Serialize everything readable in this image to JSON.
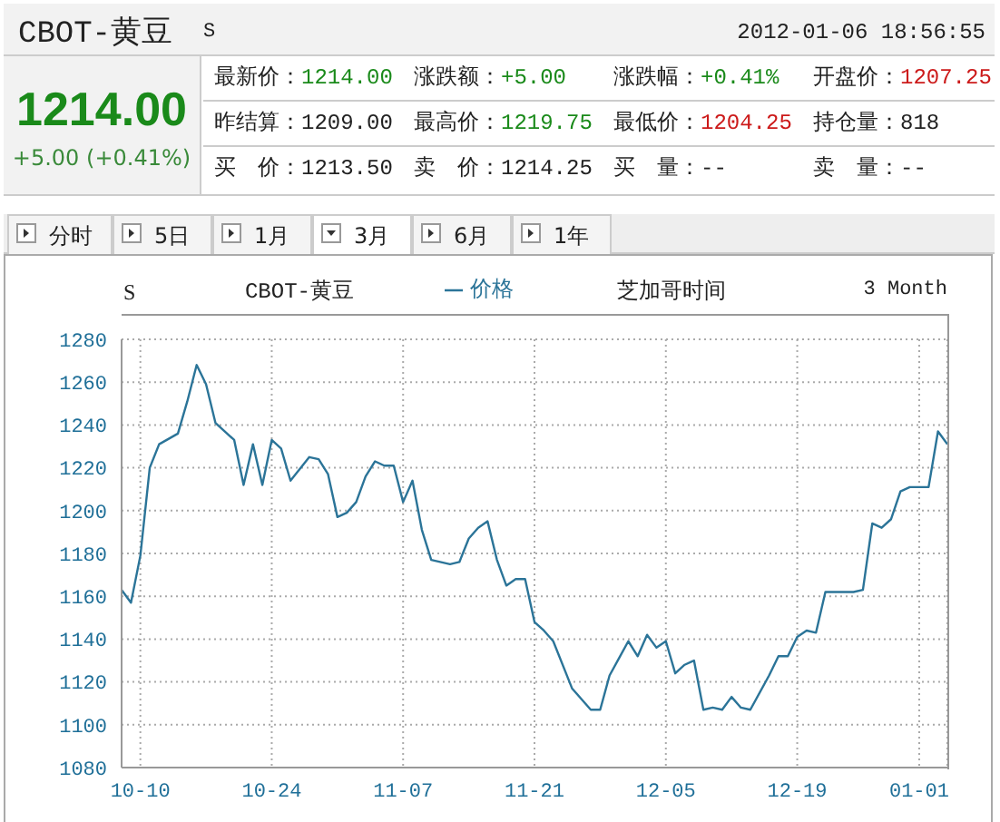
{
  "chart_data": {
    "type": "line",
    "title": "CBOT-黄豆",
    "x": [
      "2011-10-08",
      "2011-10-09",
      "2011-10-10",
      "2011-10-11",
      "2011-10-12",
      "2011-10-14",
      "2011-10-15",
      "2011-10-16",
      "2011-10-17",
      "2011-10-18",
      "2011-10-20",
      "2011-10-21",
      "2011-10-22",
      "2011-10-23",
      "2011-10-24",
      "2011-10-25",
      "2011-10-26",
      "2011-10-28",
      "2011-10-29",
      "2011-10-30",
      "2011-10-31",
      "2011-11-01",
      "2011-11-02",
      "2011-11-03",
      "2011-11-04",
      "2011-11-05",
      "2011-11-06",
      "2011-11-07",
      "2011-11-08",
      "2011-11-09",
      "2011-11-10",
      "2011-11-12",
      "2011-11-13",
      "2011-11-14",
      "2011-11-15",
      "2011-11-16",
      "2011-11-17",
      "2011-11-18",
      "2011-11-19",
      "2011-11-20",
      "2011-11-21",
      "2011-11-22",
      "2011-11-23",
      "2011-11-25",
      "2011-11-26",
      "2011-11-27",
      "2011-11-28",
      "2011-11-29",
      "2011-11-30",
      "2011-12-01",
      "2011-12-02",
      "2011-12-03",
      "2011-12-04",
      "2011-12-05",
      "2011-12-06",
      "2011-12-07",
      "2011-12-08",
      "2011-12-09",
      "2011-12-10",
      "2011-12-11",
      "2011-12-12",
      "2011-12-13",
      "2011-12-14",
      "2011-12-16",
      "2011-12-17",
      "2011-12-18",
      "2011-12-19",
      "2011-12-20",
      "2011-12-21",
      "2011-12-22",
      "2011-12-23",
      "2011-12-24",
      "2011-12-25",
      "2011-12-26",
      "2011-12-27",
      "2011-12-28",
      "2011-12-29",
      "2011-12-30",
      "2011-12-31",
      "2012-01-01",
      "2012-01-02",
      "2012-01-03",
      "2012-01-04"
    ],
    "series": [
      {
        "name": "价格",
        "color": "#2b7498",
        "values": [
          1163,
          1157,
          1179,
          1220,
          1231,
          1236,
          1251,
          1268,
          1259,
          1241,
          1233,
          1212,
          1231,
          1212,
          1233,
          1229,
          1214,
          1225,
          1224,
          1217,
          1197,
          1199,
          1204,
          1216,
          1223,
          1221,
          1221,
          1204,
          1214,
          1191,
          1177,
          1175,
          1176,
          1187,
          1192,
          1195,
          1177,
          1165,
          1168,
          1168,
          1148,
          1144,
          1139,
          1117,
          1112,
          1107,
          1107,
          1123,
          1131,
          1139,
          1132,
          1142,
          1136,
          1139,
          1124,
          1128,
          1130,
          1107,
          1108,
          1107,
          1113,
          1108,
          1107,
          1123,
          1132,
          1132,
          1141,
          1144,
          1143,
          1162,
          1162,
          1162,
          1162,
          1163,
          1194,
          1192,
          1196,
          1209,
          1211,
          1211,
          1211,
          1237,
          1231
        ]
      }
    ],
    "xlim": [
      "2011-10-08",
      "2012-01-04"
    ],
    "xticks": [
      {
        "value": "2011-10-10",
        "label": "10-10"
      },
      {
        "value": "2011-10-24",
        "label": "10-24"
      },
      {
        "value": "2011-11-07",
        "label": "11-07"
      },
      {
        "value": "2011-11-21",
        "label": "11-21"
      },
      {
        "value": "2011-12-05",
        "label": "12-05"
      },
      {
        "value": "2011-12-19",
        "label": "12-19"
      },
      {
        "value": "2012-01-01",
        "label": "01-01"
      }
    ],
    "ylim": [
      1080,
      1280
    ],
    "yticks": [
      1080,
      1100,
      1120,
      1140,
      1160,
      1180,
      1200,
      1220,
      1240,
      1260,
      1280
    ],
    "grid": true,
    "legend": "top",
    "annotations": [
      "CBOT-黄豆",
      "S",
      "2012-01-06 18:56:55",
      "1214.00",
      "+5.00 (+0.41%)",
      "最新价：",
      "1214.00",
      "涨跌额：",
      "+5.00",
      "涨跌幅：",
      "+0.41%",
      "开盘价：",
      "1207.25",
      "昨结算：",
      "1209.00",
      "最高价：",
      "1219.75",
      "最低价：",
      "1204.25",
      "持仓量：",
      "818",
      "买　价：",
      "1213.50",
      "卖　价：",
      "1214.25",
      "买　量：",
      "--",
      "卖　量：",
      "--",
      "分时",
      "5日",
      "1月",
      "3月",
      "6月",
      "1年",
      "S",
      "芝加哥时间",
      "3 Month"
    ]
  }
}
